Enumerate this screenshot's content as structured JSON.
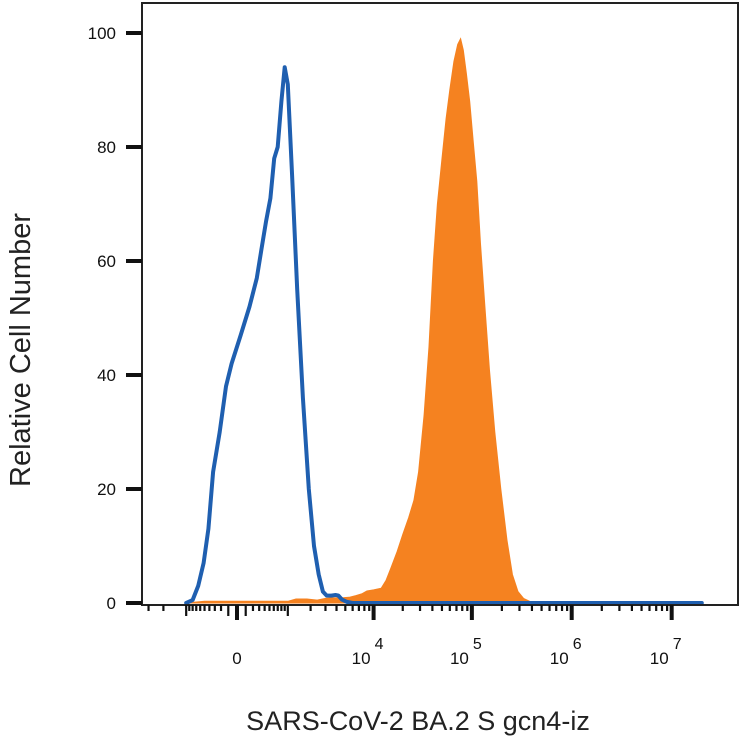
{
  "chart_data": {
    "type": "area",
    "title": "",
    "xlabel": "SARS-CoV-2 BA.2 S gcn4-iz",
    "ylabel": "Relative Cell Number",
    "x_scale": "biexponential",
    "ylim": [
      0,
      100
    ],
    "y_ticks": [
      "0",
      "20",
      "40",
      "60",
      "80",
      "100"
    ],
    "x_ticks": [
      {
        "base": "0",
        "exp": "",
        "value": 0
      },
      {
        "base": "10",
        "exp": "4",
        "value": 10000
      },
      {
        "base": "10",
        "exp": "5",
        "value": 100000
      },
      {
        "base": "10",
        "exp": "6",
        "value": 1000000
      },
      {
        "base": "10",
        "exp": "7",
        "value": 10000000
      }
    ],
    "grid": false,
    "legend": "none",
    "series": [
      {
        "style": "outline",
        "color": "#1f5fb0",
        "points": [
          [
            -1000,
            0
          ],
          [
            -800,
            0.5
          ],
          [
            -650,
            3
          ],
          [
            -520,
            7
          ],
          [
            -420,
            13
          ],
          [
            -330,
            23
          ],
          [
            -220,
            30
          ],
          [
            -130,
            38
          ],
          [
            -60,
            42
          ],
          [
            40,
            47
          ],
          [
            150,
            52
          ],
          [
            260,
            57
          ],
          [
            340,
            62
          ],
          [
            430,
            67
          ],
          [
            520,
            71
          ],
          [
            610,
            78
          ],
          [
            700,
            80
          ],
          [
            800,
            88
          ],
          [
            900,
            94
          ],
          [
            1000,
            91
          ],
          [
            1150,
            75
          ],
          [
            1350,
            55
          ],
          [
            1600,
            36
          ],
          [
            1900,
            20
          ],
          [
            2200,
            10
          ],
          [
            2500,
            5
          ],
          [
            2800,
            2
          ],
          [
            3100,
            1.3
          ],
          [
            3500,
            1.3
          ],
          [
            3900,
            1.4
          ],
          [
            4200,
            1.3
          ],
          [
            4600,
            0.6
          ],
          [
            5200,
            0.2
          ],
          [
            6000,
            0
          ],
          [
            100000,
            0
          ],
          [
            20000000,
            0
          ]
        ]
      },
      {
        "style": "filled",
        "color": "#f58220",
        "points": [
          [
            -1000,
            0
          ],
          [
            -500,
            0.3
          ],
          [
            0,
            0.3
          ],
          [
            1000,
            0.3
          ],
          [
            1300,
            0.7
          ],
          [
            1800,
            0.7
          ],
          [
            2400,
            0.5
          ],
          [
            3000,
            0.8
          ],
          [
            3500,
            0.9
          ],
          [
            4500,
            0.9
          ],
          [
            5500,
            1.0
          ],
          [
            6500,
            1.3
          ],
          [
            7500,
            1.6
          ],
          [
            8500,
            2.1
          ],
          [
            10000,
            2.3
          ],
          [
            12000,
            2.6
          ],
          [
            13500,
            4
          ],
          [
            15000,
            6
          ],
          [
            17500,
            9
          ],
          [
            20000,
            12
          ],
          [
            23000,
            15
          ],
          [
            26000,
            18
          ],
          [
            29000,
            23
          ],
          [
            33000,
            33
          ],
          [
            37000,
            45
          ],
          [
            41000,
            60
          ],
          [
            45000,
            70
          ],
          [
            50000,
            78
          ],
          [
            55000,
            85
          ],
          [
            60000,
            90
          ],
          [
            66000,
            95
          ],
          [
            72000,
            98
          ],
          [
            77000,
            99
          ],
          [
            82000,
            97
          ],
          [
            88000,
            93
          ],
          [
            95000,
            88
          ],
          [
            103000,
            81
          ],
          [
            112000,
            74
          ],
          [
            122000,
            63
          ],
          [
            135000,
            52
          ],
          [
            150000,
            41
          ],
          [
            170000,
            30
          ],
          [
            195000,
            20
          ],
          [
            225000,
            11
          ],
          [
            255000,
            5
          ],
          [
            290000,
            2
          ],
          [
            330000,
            0.8
          ],
          [
            380000,
            0.3
          ],
          [
            450000,
            0
          ],
          [
            20000000,
            0
          ]
        ]
      }
    ]
  }
}
